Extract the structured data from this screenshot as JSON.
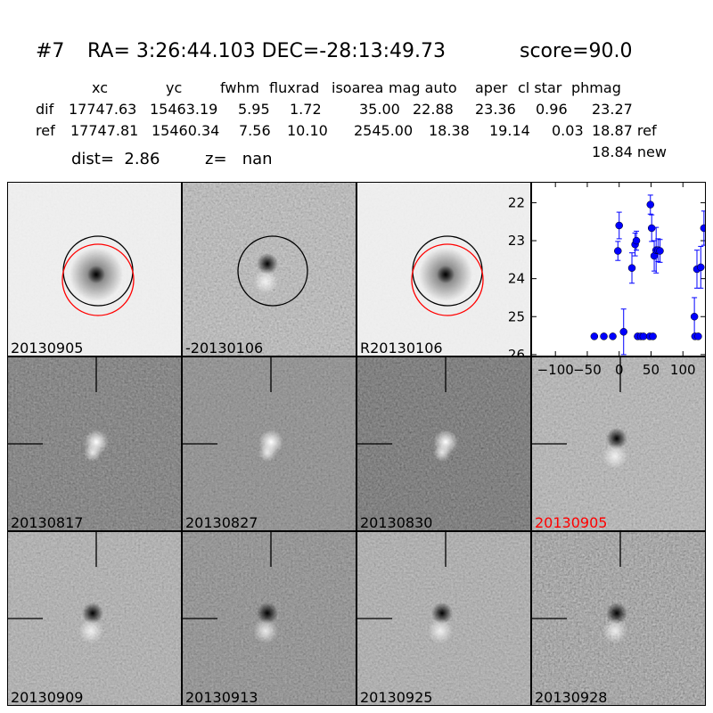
{
  "header": {
    "id": "#7",
    "coords": "RA= 3:26:44.103 DEC=-28:13:49.73",
    "score": "score=90.0"
  },
  "table": {
    "columns": [
      "xc",
      "yc",
      "fwhm",
      "fluxrad",
      "isoarea",
      "mag auto",
      "aper",
      "cl star",
      "phmag"
    ],
    "rows": [
      [
        "dif",
        "17747.63",
        "15463.19",
        "5.95",
        "1.72",
        "35.00",
        "22.88",
        "23.36",
        "0.96",
        "23.27"
      ],
      [
        "ref",
        "17747.81",
        "15460.34",
        "7.56",
        "10.10",
        "2545.00",
        "18.38",
        "19.14",
        "0.03",
        "18.87 ref"
      ]
    ],
    "extra": "18.84 new"
  },
  "info": {
    "dist": "dist=  2.86",
    "z": "z=   nan"
  },
  "panels": [
    {
      "label": "20130905"
    },
    {
      "label": "-20130106"
    },
    {
      "label": "R20130106"
    },
    {
      "label": "20130817"
    },
    {
      "label": "20130827"
    },
    {
      "label": "20130830"
    },
    {
      "label": "20130905",
      "color": "#ff0000"
    },
    {
      "label": "20130909"
    },
    {
      "label": "20130913"
    },
    {
      "label": "20130925"
    },
    {
      "label": "20130928"
    }
  ],
  "chart_data": {
    "type": "scatter",
    "color": "#0000ff",
    "x": [
      -39,
      -24,
      -10,
      -2,
      0,
      7,
      20,
      25,
      27,
      29,
      34,
      38,
      48,
      49,
      51,
      53,
      55,
      58,
      61,
      64,
      118,
      119,
      122,
      124,
      128,
      133
    ],
    "values": [
      25.52,
      25.52,
      25.52,
      23.27,
      22.6,
      25.4,
      23.72,
      23.1,
      23.0,
      25.52,
      25.52,
      25.52,
      25.52,
      22.05,
      22.67,
      25.52,
      23.4,
      23.25,
      23.25,
      23.27,
      25.0,
      25.52,
      23.75,
      25.52,
      23.7,
      22.67
    ],
    "errors": [
      0,
      0,
      0,
      0.25,
      0.35,
      0.6,
      0.4,
      0.3,
      0.25,
      0,
      0,
      0,
      0,
      0.25,
      0.35,
      0,
      0.4,
      0.6,
      0.3,
      0.3,
      0.5,
      0,
      0.5,
      0,
      0.55,
      0.45
    ],
    "xlim": [
      -138,
      136
    ],
    "ylim": [
      21.45,
      26.05
    ],
    "y_inverted": true,
    "xticks": [
      {
        "value": -100,
        "label": "−100"
      },
      {
        "value": -50,
        "label": "−50"
      },
      0,
      50,
      100
    ],
    "yticks": [
      22,
      23,
      24,
      25,
      26
    ]
  }
}
